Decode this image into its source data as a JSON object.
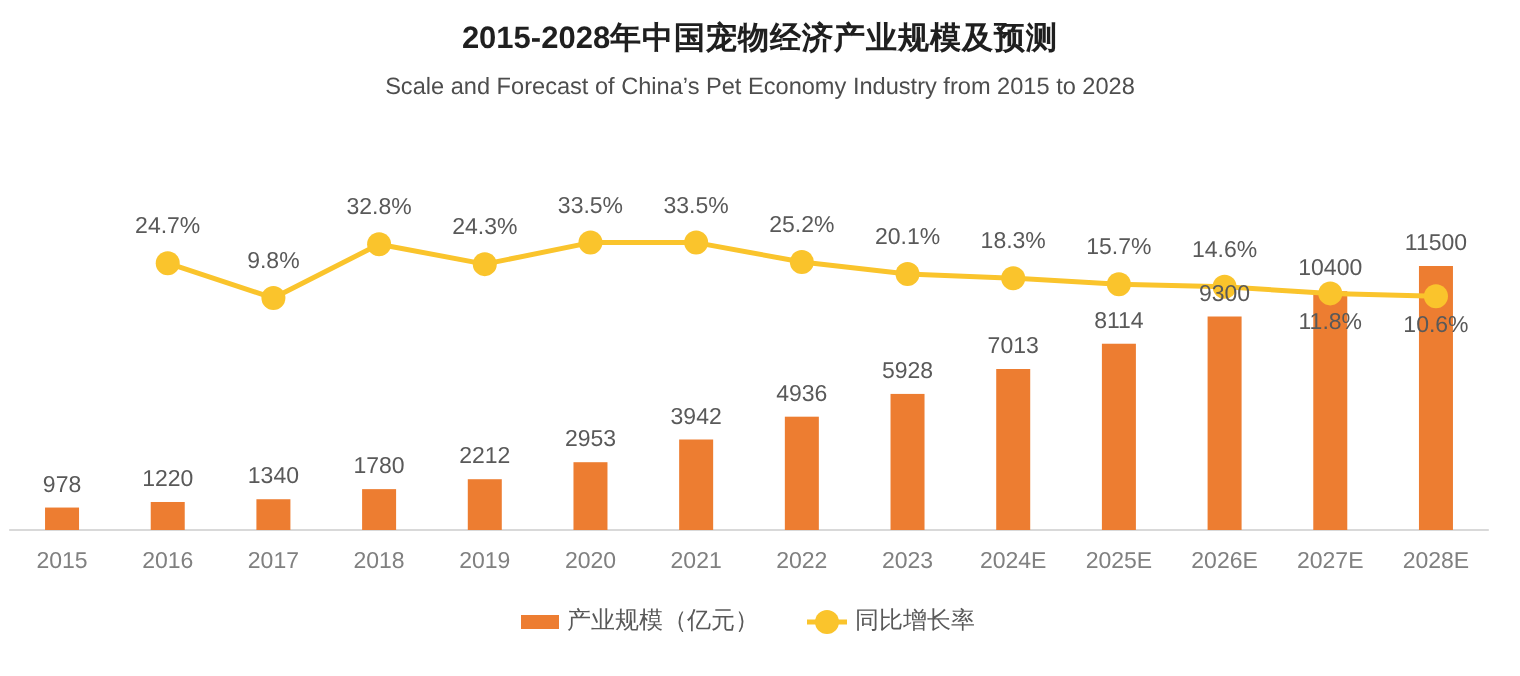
{
  "chart_data": {
    "type": "bar",
    "title": "2015-2028年中国宠物经济产业规模及预测",
    "subtitle": "Scale and Forecast of China’s Pet Economy Industry from 2015 to 2028",
    "categories": [
      "2015",
      "2016",
      "2017",
      "2018",
      "2019",
      "2020",
      "2021",
      "2022",
      "2023",
      "2024E",
      "2025E",
      "2026E",
      "2027E",
      "2028E"
    ],
    "series": [
      {
        "name": "产业规模（亿元）",
        "color": "#ed7d31",
        "values": [
          978,
          1220,
          1340,
          1780,
          2212,
          2953,
          3942,
          4936,
          5928,
          7013,
          8114,
          9300,
          10400,
          11500
        ],
        "value_labels": [
          "978",
          "1220",
          "1340",
          "1780",
          "2212",
          "2953",
          "3942",
          "4936",
          "5928",
          "7013",
          "8114",
          "9300",
          "10400",
          "11500"
        ]
      },
      {
        "name": "同比增长率",
        "type": "line",
        "axis": "y2",
        "color": "#fac42c",
        "values": [
          null,
          24.7,
          9.8,
          32.8,
          24.3,
          33.5,
          33.5,
          25.2,
          20.1,
          18.3,
          15.7,
          14.6,
          11.8,
          10.6
        ],
        "value_labels": [
          null,
          "24.7%",
          "9.8%",
          "32.8%",
          "24.3%",
          "33.5%",
          "33.5%",
          "25.2%",
          "20.1%",
          "18.3%",
          "15.7%",
          "14.6%",
          "11.8%",
          "10.6%"
        ]
      }
    ],
    "legend": "bottom",
    "marker": "circle",
    "line_style": "solid"
  }
}
